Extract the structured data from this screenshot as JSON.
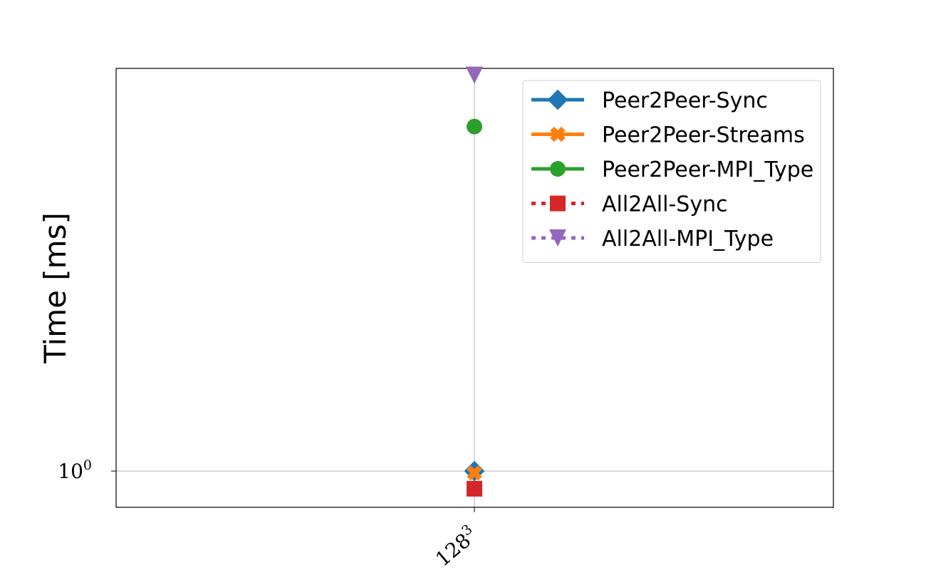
{
  "chart_data": {
    "type": "line",
    "categories": [
      "128"
    ],
    "x_tick_labels": [
      {
        "base": "128",
        "sup": "3"
      }
    ],
    "ylabel": "Time [ms]",
    "xlabel": "",
    "y_scale": "log",
    "ylim": [
      0.91,
      2.85
    ],
    "y_ticks": [
      {
        "value": 1,
        "base": "10",
        "sup": "0"
      }
    ],
    "grid": true,
    "legend_placement": "upper right",
    "series": [
      {
        "name": "Peer2Peer-Sync",
        "values": [
          1.0
        ],
        "color": "#1f77b4",
        "marker": "diamond",
        "linestyle": "solid"
      },
      {
        "name": "Peer2Peer-Streams",
        "values": [
          0.995
        ],
        "color": "#ff7f0e",
        "marker": "x-filled",
        "linestyle": "solid"
      },
      {
        "name": "Peer2Peer-MPI_Type",
        "values": [
          2.45
        ],
        "color": "#2ca02c",
        "marker": "circle",
        "linestyle": "solid"
      },
      {
        "name": "All2All-Sync",
        "values": [
          0.955
        ],
        "color": "#d62728",
        "marker": "square",
        "linestyle": "dotted"
      },
      {
        "name": "All2All-MPI_Type",
        "values": [
          2.8
        ],
        "color": "#9467bd",
        "marker": "triangle-down",
        "linestyle": "dotted"
      }
    ]
  }
}
